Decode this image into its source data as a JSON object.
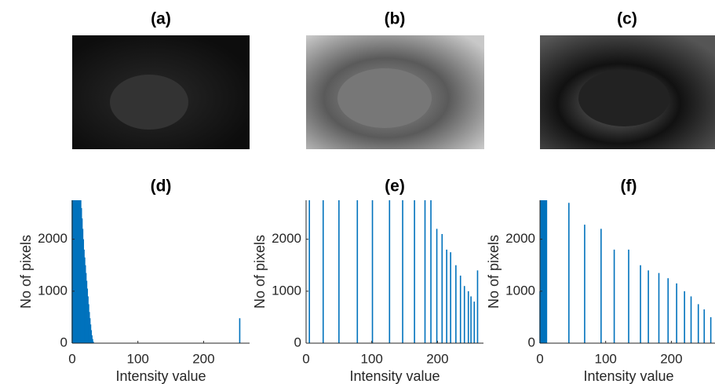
{
  "images": [
    {
      "title": "(a)"
    },
    {
      "title": "(b)"
    },
    {
      "title": "(c)"
    }
  ],
  "chart_data": [
    {
      "type": "bar",
      "title": "(d)",
      "xlabel": "Intensity value",
      "ylabel": "No of pixels",
      "color": "#0072bd",
      "x": [
        0,
        1,
        2,
        3,
        4,
        5,
        6,
        7,
        8,
        9,
        10,
        11,
        12,
        13,
        14,
        15,
        16,
        17,
        18,
        19,
        20,
        21,
        22,
        23,
        24,
        25,
        26,
        27,
        28,
        29,
        30,
        31,
        32,
        255
      ],
      "values": [
        2750,
        2750,
        2750,
        2750,
        2750,
        2750,
        2750,
        2750,
        2750,
        2750,
        2750,
        2750,
        2750,
        2750,
        2600,
        2400,
        2200,
        2000,
        1800,
        1650,
        1500,
        1350,
        1200,
        1050,
        900,
        750,
        600,
        480,
        360,
        250,
        150,
        80,
        30,
        480
      ],
      "xlim": [
        0,
        270
      ],
      "ylim": [
        0,
        2750
      ],
      "xticks": [
        0,
        100,
        200
      ],
      "yticks": [
        0,
        1000,
        2000
      ]
    },
    {
      "type": "bar",
      "title": "(e)",
      "xlabel": "Intensity value",
      "ylabel": "No of pixels",
      "color": "#0072bd",
      "x": [
        5,
        26,
        50,
        78,
        101,
        127,
        147,
        165,
        181,
        190,
        199,
        207,
        214,
        220,
        228,
        235,
        241,
        247,
        251,
        256,
        261
      ],
      "values": [
        2750,
        2750,
        2750,
        2750,
        2750,
        2750,
        2750,
        2750,
        2750,
        2750,
        2200,
        2100,
        1800,
        1750,
        1500,
        1300,
        1100,
        1000,
        900,
        800,
        1400
      ],
      "xlim": [
        0,
        270
      ],
      "ylim": [
        0,
        2750
      ],
      "xticks": [
        0,
        100,
        200
      ],
      "yticks": [
        0,
        1000,
        2000
      ]
    },
    {
      "type": "bar",
      "title": "(f)",
      "xlabel": "Intensity value",
      "ylabel": "No of pixels",
      "color": "#0072bd",
      "x": [
        0,
        1,
        2,
        3,
        4,
        5,
        6,
        7,
        8,
        9,
        10,
        44,
        68,
        93,
        113,
        135,
        153,
        165,
        181,
        195,
        208,
        220,
        230,
        241,
        250,
        260
      ],
      "values": [
        1000,
        2750,
        2750,
        2750,
        2750,
        2750,
        2750,
        2750,
        2750,
        2750,
        2750,
        2700,
        2280,
        2200,
        1800,
        1800,
        1500,
        1400,
        1350,
        1250,
        1150,
        1000,
        900,
        750,
        650,
        500
      ],
      "xlim": [
        0,
        270
      ],
      "ylim": [
        0,
        2750
      ],
      "xticks": [
        0,
        100,
        200
      ],
      "yticks": [
        0,
        1000,
        2000
      ]
    }
  ]
}
